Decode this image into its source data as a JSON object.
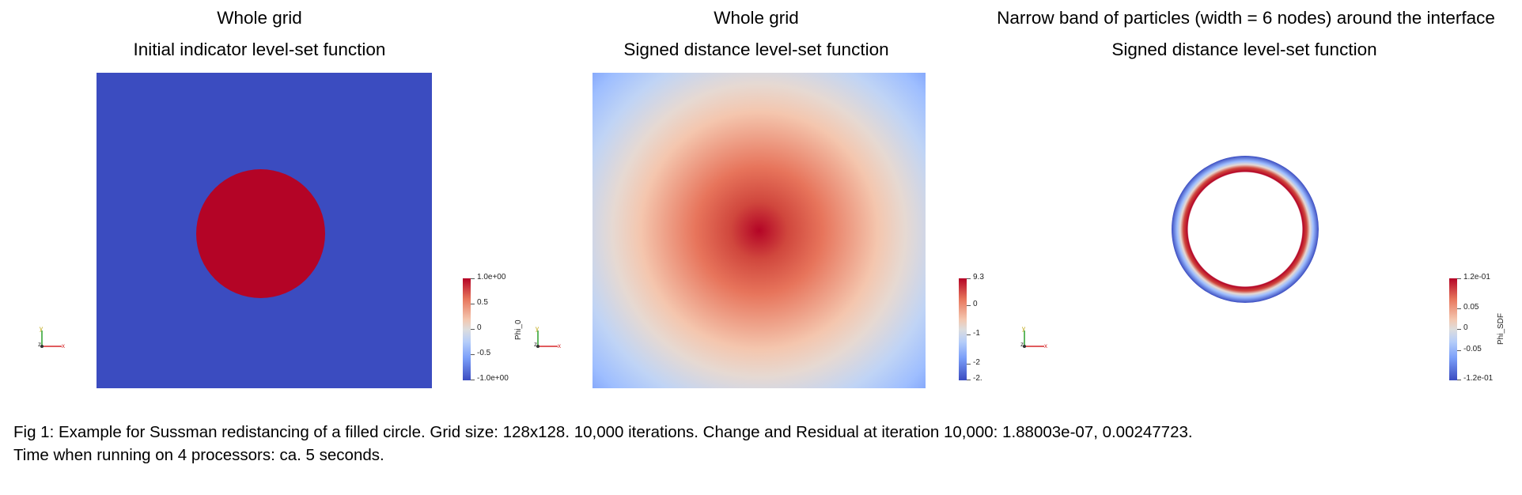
{
  "panels": [
    {
      "title1": "Whole grid",
      "title2": "Initial indicator level-set function",
      "colorbar": {
        "field": "Phi_0",
        "ticks": [
          "1.0e+00",
          "0.5",
          "0",
          "-0.5",
          "-1.0e+00"
        ]
      }
    },
    {
      "title1": "Whole grid",
      "title2": "Signed distance level-set function",
      "colorbar": {
        "field": "",
        "ticks": [
          "9.3",
          "0",
          "-1",
          "-2",
          "-2."
        ]
      }
    },
    {
      "title1": "Narrow band of particles (width = 6 nodes) around the interface",
      "title2": "Signed distance level-set function",
      "colorbar": {
        "field": "Phi_SDF",
        "ticks": [
          "1.2e-01",
          "0.05",
          "0",
          "-0.05",
          "-1.2e-01"
        ]
      }
    }
  ],
  "axes_triad_labels": {
    "y": "y",
    "z": "z",
    "x": "x"
  },
  "colors": {
    "negative": "#3b4cc0",
    "positive": "#b40426",
    "mid": "#dddddd"
  },
  "caption": {
    "line1": "Fig 1: Example for Sussman redistancing of a filled circle. Grid size: 128x128. 10,000 iterations. Change and Residual at iteration 10,000: 1.88003e-07, 0.00247723.",
    "line2": "Time when running on 4 processors: ca. 5 seconds."
  }
}
